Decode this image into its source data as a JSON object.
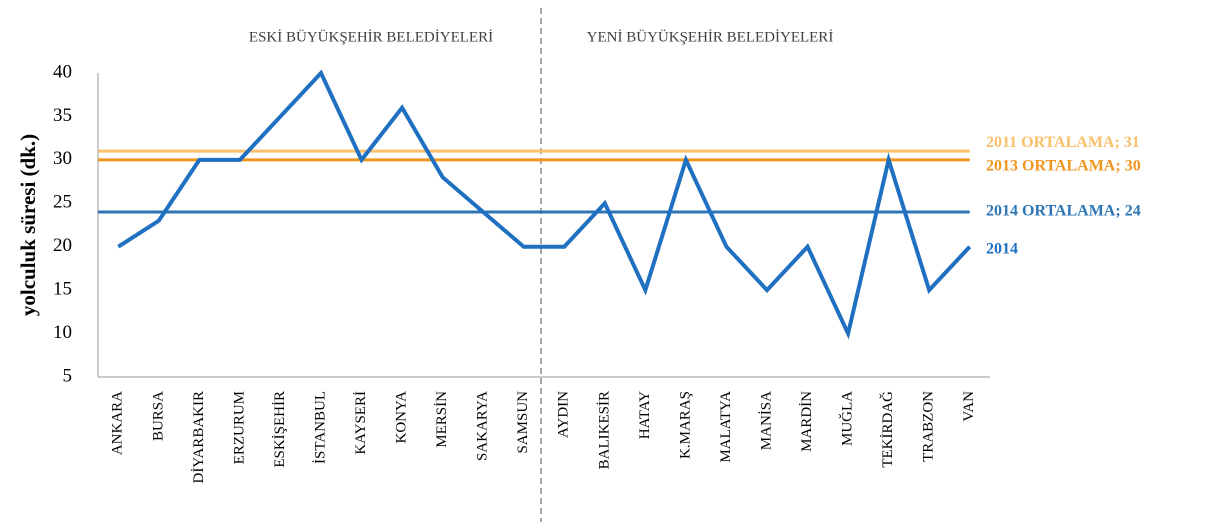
{
  "chart_data": {
    "type": "line",
    "y_label": "yolculuk süresi (dk.)",
    "groups": [
      "ESKİ BÜYÜKŞEHİR BELEDİYELERİ",
      "YENİ BÜYÜKŞEHİR BELEDİYELERİ"
    ],
    "categories": [
      "ANKARA",
      "BURSA",
      "DİYARBAKIR",
      "ERZURUM",
      "ESKİŞEHİR",
      "İSTANBUL",
      "KAYSERİ",
      "KONYA",
      "MERSİN",
      "SAKARYA",
      "SAMSUN",
      "AYDIN",
      "BALIKESİR",
      "HATAY",
      "K.MARAŞ",
      "MALATYA",
      "MANİSA",
      "MARDİN",
      "MUĞLA",
      "TEKİRDAĞ",
      "TRABZON",
      "VAN"
    ],
    "series": [
      {
        "name": "2014",
        "color": "#1f70c1",
        "values": [
          20,
          23,
          30,
          30,
          35,
          40,
          30,
          36,
          28,
          24,
          20,
          20,
          25,
          15,
          30,
          20,
          15,
          20,
          10,
          30,
          15,
          20
        ]
      }
    ],
    "reference_lines": [
      {
        "label": "2011 ORTALAMA; 31",
        "value": 31,
        "color": "#f9bf6b"
      },
      {
        "label": "2013 ORTALAMA; 30",
        "value": 30,
        "color": "#f0961e"
      },
      {
        "label": "2014 ORTALAMA; 24",
        "value": 24,
        "color": "#2e75b6"
      }
    ],
    "ylim": [
      5,
      40
    ],
    "yticks": [
      5,
      10,
      15,
      20,
      25,
      30,
      35,
      40
    ],
    "grid": false
  }
}
